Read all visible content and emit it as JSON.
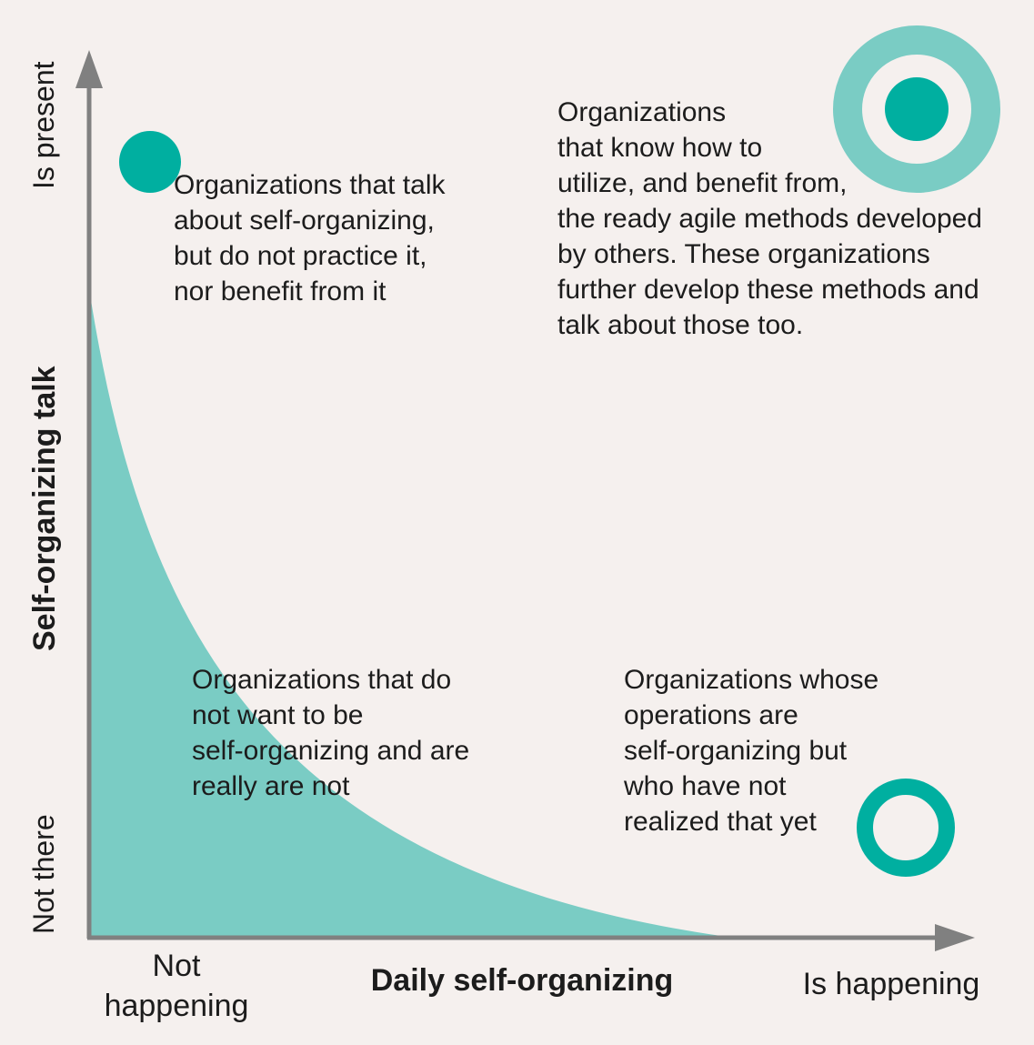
{
  "axes": {
    "y_title": "Self-organizing talk",
    "y_top": "Is present",
    "y_bottom": "Not there",
    "x_title": "Daily self-organizing",
    "x_left": "Not\nhappening",
    "x_right": "Is happening"
  },
  "quadrants": {
    "top_left": "Organizations that talk\nabout self-organizing,\nbut do not practice it,\nnor benefit from it",
    "top_right": "Organizations\nthat know how to\nutilize, and benefit from,\nthe ready agile methods developed\nby others. These organizations\nfurther develop these methods and\ntalk about those too.",
    "bottom_left": "Organizations that do\nnot want to be\nself-organizing and are\nreally are not",
    "bottom_right": "Organizations whose\noperations are\nself-organizing but\nwho have not\nrealized that yet"
  },
  "colors": {
    "background": "#f5f0ee",
    "teal_dark": "#00afa0",
    "teal_light": "#7accc4",
    "axis": "#808080"
  }
}
